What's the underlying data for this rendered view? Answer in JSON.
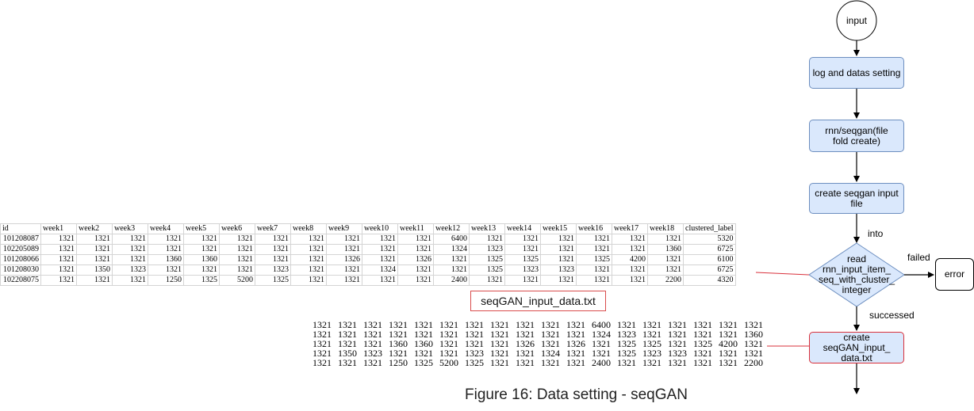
{
  "table": {
    "headers": [
      "id",
      "week1",
      "week2",
      "week3",
      "week4",
      "week5",
      "week6",
      "week7",
      "week8",
      "week9",
      "week10",
      "week11",
      "week12",
      "week13",
      "week14",
      "week15",
      "week16",
      "week17",
      "week18",
      "clustered_label"
    ],
    "rows": [
      [
        "101208087",
        "1321",
        "1321",
        "1321",
        "1321",
        "1321",
        "1321",
        "1321",
        "1321",
        "1321",
        "1321",
        "1321",
        "6400",
        "1321",
        "1321",
        "1321",
        "1321",
        "1321",
        "1321",
        "5320"
      ],
      [
        "102205089",
        "1321",
        "1321",
        "1321",
        "1321",
        "1321",
        "1321",
        "1321",
        "1321",
        "1321",
        "1321",
        "1321",
        "1324",
        "1323",
        "1321",
        "1321",
        "1321",
        "1321",
        "1360",
        "6725"
      ],
      [
        "101208066",
        "1321",
        "1321",
        "1321",
        "1360",
        "1360",
        "1321",
        "1321",
        "1321",
        "1326",
        "1321",
        "1326",
        "1321",
        "1325",
        "1325",
        "1321",
        "1325",
        "4200",
        "1321",
        "6100"
      ],
      [
        "101208030",
        "1321",
        "1350",
        "1323",
        "1321",
        "1321",
        "1321",
        "1323",
        "1321",
        "1321",
        "1324",
        "1321",
        "1321",
        "1325",
        "1323",
        "1323",
        "1321",
        "1321",
        "1321",
        "6725"
      ],
      [
        "102208075",
        "1321",
        "1321",
        "1321",
        "1250",
        "1325",
        "5200",
        "1325",
        "1321",
        "1321",
        "1321",
        "1321",
        "2400",
        "1321",
        "1321",
        "1321",
        "1321",
        "1321",
        "2200",
        "4320"
      ]
    ]
  },
  "file_label": "seqGAN_input_data.txt",
  "txt_rows": [
    [
      "1321",
      "1321",
      "1321",
      "1321",
      "1321",
      "1321",
      "1321",
      "1321",
      "1321",
      "1321",
      "1321",
      "6400",
      "1321",
      "1321",
      "1321",
      "1321",
      "1321",
      "1321"
    ],
    [
      "1321",
      "1321",
      "1321",
      "1321",
      "1321",
      "1321",
      "1321",
      "1321",
      "1321",
      "1321",
      "1321",
      "1324",
      "1323",
      "1321",
      "1321",
      "1321",
      "1321",
      "1360"
    ],
    [
      "1321",
      "1321",
      "1321",
      "1360",
      "1360",
      "1321",
      "1321",
      "1321",
      "1326",
      "1321",
      "1326",
      "1321",
      "1325",
      "1325",
      "1321",
      "1325",
      "4200",
      "1321"
    ],
    [
      "1321",
      "1350",
      "1323",
      "1321",
      "1321",
      "1321",
      "1323",
      "1321",
      "1321",
      "1324",
      "1321",
      "1321",
      "1325",
      "1323",
      "1323",
      "1321",
      "1321",
      "1321"
    ],
    [
      "1321",
      "1321",
      "1321",
      "1250",
      "1325",
      "5200",
      "1325",
      "1321",
      "1321",
      "1321",
      "1321",
      "2400",
      "1321",
      "1321",
      "1321",
      "1321",
      "1321",
      "2200"
    ]
  ],
  "caption": "Figure 16: Data setting - seqGAN",
  "flow": {
    "start": "input",
    "step1": "log and datas setting",
    "step2": "rnn/seqgan(file fold create)",
    "step3": "create seqgan input file",
    "edge_into": "into",
    "decision": "read rnn_input_item_ seq_with_cluster_ integer",
    "edge_failed": "failed",
    "error": "error",
    "edge_successed": "successed",
    "step4": "create seqGAN_input_ data.txt"
  },
  "colors": {
    "node_fill": "#dae8fc",
    "node_stroke": "#6c8ebf",
    "highlight": "#d9303b"
  }
}
